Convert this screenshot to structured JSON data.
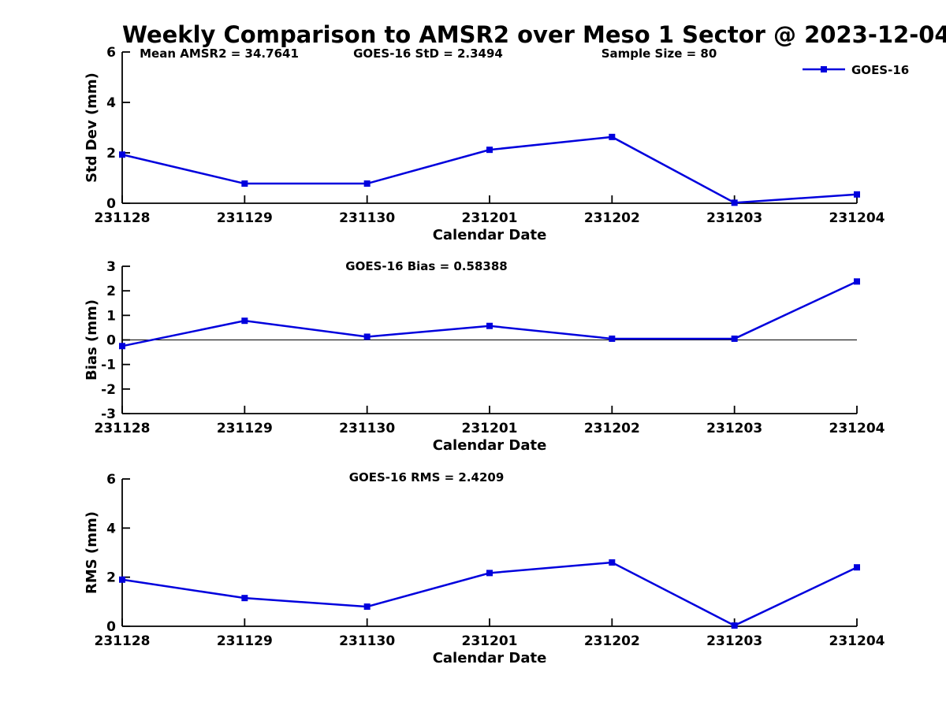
{
  "title": "Weekly Comparison to AMSR2 over Meso 1 Sector @ 2023-12-04",
  "colors": {
    "series": "#0000dd",
    "axis": "#000000",
    "background": "#ffffff"
  },
  "legend": {
    "label": "GOES-16",
    "position": "top-right"
  },
  "chart_data": [
    {
      "type": "line",
      "name": "std-dev",
      "categories": [
        "231128",
        "231129",
        "231130",
        "231201",
        "231202",
        "231203",
        "231204"
      ],
      "series": [
        {
          "name": "GOES-16",
          "values": [
            1.93,
            0.78,
            0.78,
            2.12,
            2.63,
            0.02,
            0.35
          ]
        }
      ],
      "xlabel": "Calendar Date",
      "ylabel": "Std Dev (mm)",
      "ylim": [
        0,
        6
      ],
      "yticks": [
        0,
        2,
        4,
        6
      ],
      "annotations": [
        "Mean AMSR2 = 34.7641",
        "GOES-16 StD = 2.3494",
        "Sample Size = 80"
      ],
      "legend_visible": true,
      "zero_line": false,
      "grid": false,
      "marker": "square"
    },
    {
      "type": "line",
      "name": "bias",
      "categories": [
        "231128",
        "231129",
        "231130",
        "231201",
        "231202",
        "231203",
        "231204"
      ],
      "series": [
        {
          "name": "GOES-16",
          "values": [
            -0.25,
            0.78,
            0.13,
            0.57,
            0.05,
            0.05,
            2.38
          ]
        }
      ],
      "xlabel": "Calendar Date",
      "ylabel": "Bias (mm)",
      "ylim": [
        -3,
        3
      ],
      "yticks": [
        -3,
        -2,
        -1,
        0,
        1,
        2,
        3
      ],
      "annotations": [
        "GOES-16 Bias  = 0.58388"
      ],
      "legend_visible": false,
      "zero_line": true,
      "grid": false,
      "marker": "square"
    },
    {
      "type": "line",
      "name": "rms",
      "categories": [
        "231128",
        "231129",
        "231130",
        "231201",
        "231202",
        "231203",
        "231204"
      ],
      "series": [
        {
          "name": "GOES-16",
          "values": [
            1.9,
            1.15,
            0.8,
            2.17,
            2.6,
            0.03,
            2.4
          ]
        }
      ],
      "xlabel": "Calendar Date",
      "ylabel": "RMS (mm)",
      "ylim": [
        0,
        6
      ],
      "yticks": [
        0,
        2,
        4,
        6
      ],
      "annotations": [
        "GOES-16 RMS = 2.4209"
      ],
      "legend_visible": false,
      "zero_line": false,
      "grid": false,
      "marker": "square"
    }
  ]
}
